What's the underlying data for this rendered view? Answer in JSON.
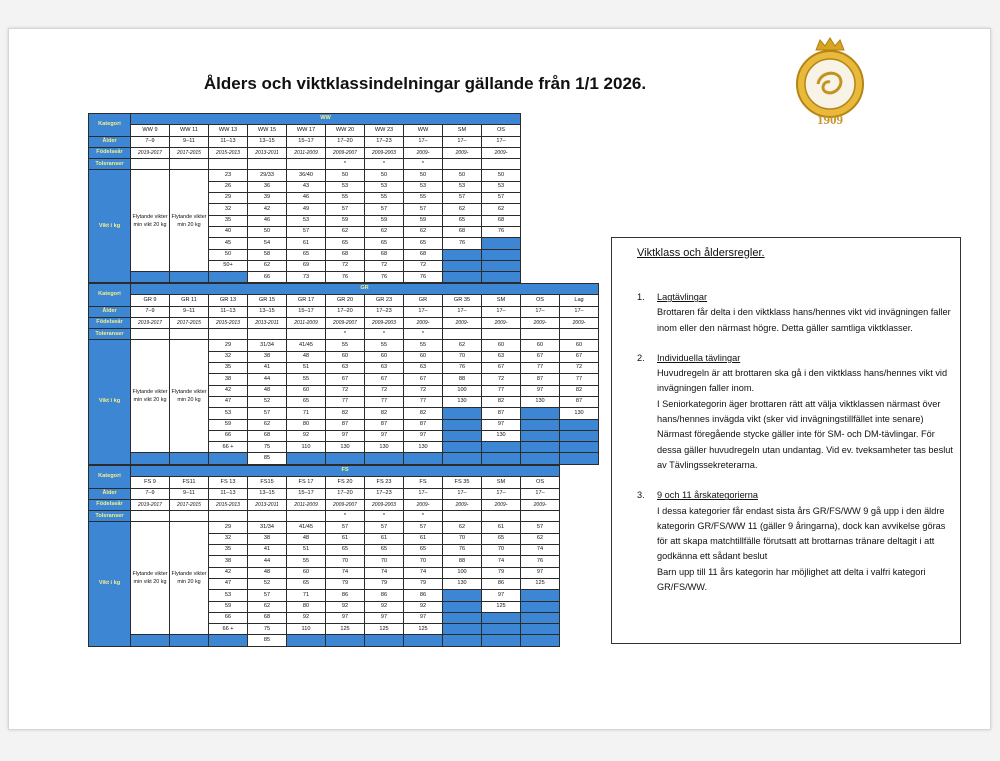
{
  "header": {
    "title": "Ålders och viktklassindelningar gällande från 1/1 2026.",
    "logo_year": "1909"
  },
  "tables": [
    {
      "group": "WW",
      "label_kategori": "Kategori",
      "categories": [
        "WW 9",
        "WW 11",
        "WW 13",
        "WW 15",
        "WW 17",
        "WW 20",
        "WW 23",
        "WW",
        "SM",
        "OS"
      ],
      "label_alder": "Ålder",
      "ages": [
        "7–9",
        "9–11",
        "11–13",
        "13–15",
        "15–17",
        "17–20",
        "17–23",
        "17–",
        "17–",
        "17–"
      ],
      "label_fodelsear": "Födelseår",
      "birth_years": [
        "2019-2017",
        "2017-2015",
        "2015-2013",
        "2013-2011",
        "2011-2009",
        "2009-2007",
        "2009-2003",
        "2009-",
        "2009-",
        "2009-"
      ],
      "label_toleranser": "Toleranser",
      "tolerances": [
        null,
        null,
        null,
        null,
        null,
        "*",
        "*",
        "*",
        null,
        null
      ],
      "label_vikt": "Vikt i kg",
      "floating": [
        "Flytande vikter min vikt 20 kg",
        "Flytande vikter min 20 kg"
      ],
      "rows": [
        [
          23,
          "29/33",
          "36/40",
          50,
          50,
          50,
          50,
          50
        ],
        [
          26,
          36,
          43,
          53,
          53,
          53,
          53,
          53
        ],
        [
          29,
          39,
          46,
          55,
          55,
          55,
          57,
          57
        ],
        [
          32,
          42,
          49,
          57,
          57,
          57,
          62,
          62
        ],
        [
          35,
          46,
          53,
          59,
          59,
          59,
          65,
          68
        ],
        [
          40,
          50,
          57,
          62,
          62,
          62,
          68,
          76
        ],
        [
          45,
          54,
          61,
          65,
          65,
          65,
          76,
          null
        ],
        [
          50,
          58,
          65,
          68,
          68,
          68,
          null,
          null
        ],
        [
          "50+",
          62,
          69,
          72,
          72,
          72,
          null,
          null
        ],
        [
          null,
          66,
          73,
          76,
          76,
          76,
          null,
          null
        ]
      ]
    },
    {
      "group": "GR",
      "label_kategori": "Kategori",
      "categories": [
        "GR 9",
        "GR 11",
        "GR 13",
        "GR 15",
        "GR 17",
        "GR 20",
        "GR 23",
        "GR",
        "GR 35",
        "SM",
        "OS",
        "Lag"
      ],
      "label_alder": "Ålder",
      "ages": [
        "7–9",
        "9–11",
        "11–13",
        "13–15",
        "15–17",
        "17–20",
        "17–23",
        "17–",
        "17–",
        "17–",
        "17–",
        "17–"
      ],
      "label_fodelsear": "Födelseår",
      "birth_years": [
        "2019-2017",
        "2017-2015",
        "2015-2013",
        "2013-2011",
        "2011-2009",
        "2009-2007",
        "2009-2003",
        "2009-",
        "2009-",
        "2009-",
        "2009-",
        "2009-"
      ],
      "label_toleranser": "Toleranser",
      "tolerances": [
        null,
        null,
        null,
        null,
        null,
        "*",
        "*",
        "*",
        null,
        null,
        null,
        null
      ],
      "label_vikt": "Vikt i kg",
      "floating": [
        "Flytande vikter min vikt 20 kg",
        "Flytande vikter min 20 kg"
      ],
      "rows": [
        [
          29,
          "31/34",
          "41/45",
          55,
          55,
          55,
          62,
          60,
          60,
          60
        ],
        [
          32,
          38,
          48,
          60,
          60,
          60,
          70,
          63,
          67,
          67
        ],
        [
          35,
          41,
          51,
          63,
          63,
          63,
          76,
          67,
          77,
          72
        ],
        [
          38,
          44,
          55,
          67,
          67,
          67,
          88,
          72,
          87,
          77
        ],
        [
          42,
          48,
          60,
          72,
          72,
          72,
          100,
          77,
          97,
          82
        ],
        [
          47,
          52,
          65,
          77,
          77,
          77,
          130,
          82,
          130,
          87
        ],
        [
          53,
          57,
          71,
          82,
          82,
          82,
          null,
          87,
          null,
          130
        ],
        [
          59,
          62,
          80,
          87,
          87,
          87,
          null,
          97,
          null,
          null
        ],
        [
          66,
          68,
          92,
          97,
          97,
          97,
          null,
          130,
          null,
          null
        ],
        [
          "66 +",
          75,
          110,
          130,
          130,
          130,
          null,
          null,
          null,
          null
        ],
        [
          null,
          85,
          null,
          null,
          null,
          null,
          null,
          null,
          null,
          null
        ]
      ]
    },
    {
      "group": "FS",
      "label_kategori": "Kategori",
      "categories": [
        "FS 9",
        "FS11",
        "FS 13",
        "FS15",
        "FS 17",
        "FS 20",
        "FS 23",
        "FS",
        "FS 35",
        "SM",
        "OS"
      ],
      "label_alder": "Ålder",
      "ages": [
        "7–9",
        "9–11",
        "11–13",
        "13–15",
        "15–17",
        "17–20",
        "17–23",
        "17–",
        "17–",
        "17–",
        "17–"
      ],
      "label_fodelsear": "Födelseår",
      "birth_years": [
        "2019-2017",
        "2017-2015",
        "2015-2013",
        "2013-2011",
        "2011-2009",
        "2009-2007",
        "2009-2003",
        "2009-",
        "2009-",
        "2009-",
        "2009-"
      ],
      "label_toleranser": "Toleranser",
      "tolerances": [
        null,
        null,
        null,
        null,
        null,
        "*",
        "*",
        "*",
        null,
        null,
        null
      ],
      "label_vikt": "Vikt i kg",
      "floating": [
        "Flytande vikter min vikt 20 kg",
        "Flytande vikter min 20 kg"
      ],
      "rows": [
        [
          29,
          "31/34",
          "41/45",
          57,
          57,
          57,
          62,
          61,
          57
        ],
        [
          32,
          38,
          48,
          61,
          61,
          61,
          70,
          65,
          62
        ],
        [
          35,
          41,
          51,
          65,
          65,
          65,
          76,
          70,
          74
        ],
        [
          38,
          44,
          55,
          70,
          70,
          70,
          88,
          74,
          76
        ],
        [
          42,
          48,
          60,
          74,
          74,
          74,
          100,
          79,
          97
        ],
        [
          47,
          52,
          65,
          79,
          79,
          79,
          130,
          86,
          125
        ],
        [
          53,
          57,
          71,
          86,
          86,
          86,
          null,
          97,
          null
        ],
        [
          59,
          62,
          80,
          92,
          92,
          92,
          null,
          125,
          null
        ],
        [
          66,
          68,
          92,
          97,
          97,
          97,
          null,
          null,
          null
        ],
        [
          "66 +",
          75,
          110,
          125,
          125,
          125,
          null,
          null,
          null
        ],
        [
          null,
          85,
          null,
          null,
          null,
          null,
          null,
          null,
          null
        ]
      ]
    }
  ],
  "rules": {
    "title": "Viktklass och åldersregler.",
    "items": [
      {
        "number": "1.",
        "heading": "Lagtävlingar",
        "paragraphs": [
          "Brottaren får delta i den viktklass hans/hennes vikt vid invägningen faller inom eller den närmast högre. Detta gäller samtliga viktklasser."
        ]
      },
      {
        "number": "2.",
        "heading": "Individuella tävlingar",
        "paragraphs": [
          "Huvudregeln är att brottaren ska gå i den viktklass hans/hennes vikt vid invägningen faller inom.",
          "I Seniorkategorin äger brottaren rätt att välja viktklassen närmast över hans/hennes invägda vikt (sker vid invägningstillfället inte senare)",
          "Närmast föregående stycke gäller inte för SM- och DM-tävlingar. För dessa gäller huvudregeln utan undantag. Vid ev. tveksamheter tas beslut av Tävlingssekreterarna."
        ]
      },
      {
        "number": "3.",
        "heading": "9 och 11 årskategorierna",
        "paragraphs": [
          "I dessa kategorier får endast sista års GR/FS/WW 9 gå upp i den äldre kategorin GR/FS/WW 11 (gäller 9 åringarna), dock kan avvikelse göras för att skapa matchtillfälle förutsatt att brottarnas tränare deltagit i att godkänna ett sådant beslut",
          "Barn upp till 11 års kategorin har möjlighet att delta i valfri kategori GR/FS/WW."
        ]
      }
    ]
  }
}
